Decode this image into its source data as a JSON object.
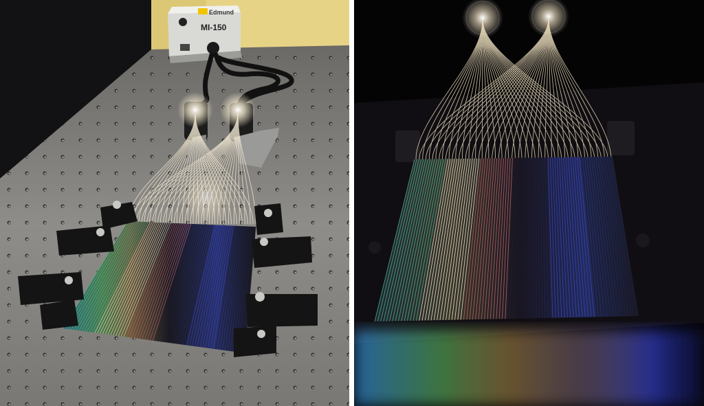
{
  "left_panel": {
    "light_source": {
      "brand": "Edmund",
      "model": "MI-150"
    }
  },
  "colors": {
    "table": "#8e8c88",
    "wall": "#e3cf7c",
    "fiber_glow": "#fff6de",
    "fabric_dark": "#16161e",
    "fabric_blue": "#3a48c8",
    "fabric_green": "#4cc0a0",
    "fabric_red": "#c86a6a",
    "right_background": "#050405"
  }
}
